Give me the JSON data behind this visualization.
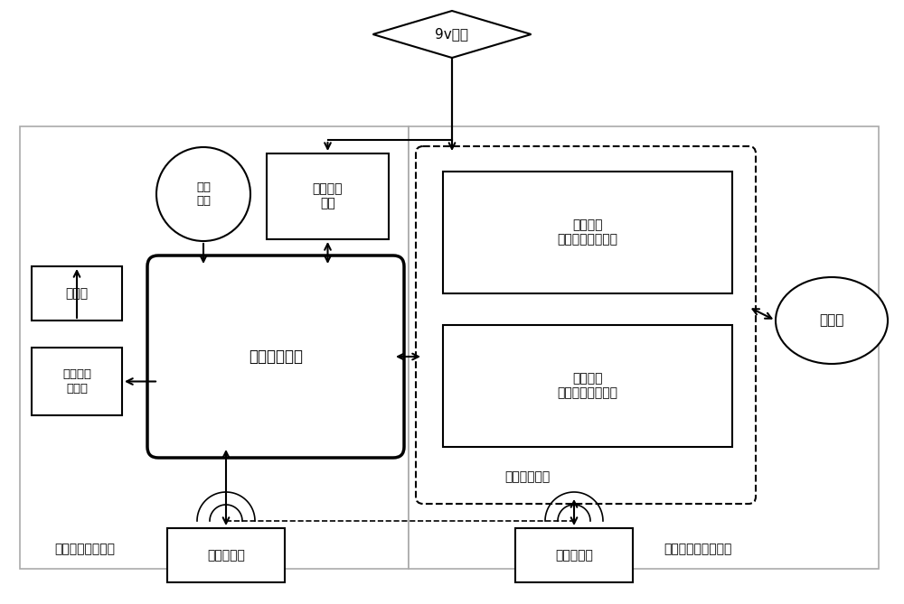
{
  "bg_color": "#ffffff",
  "lc": "#000000",
  "gray": "#aaaaaa",
  "figsize": [
    10.0,
    6.69
  ],
  "dpi": 100,
  "battery_label": "9v电池",
  "control_mcu_label": "控制用单片机",
  "matrix_kbd_label": "矩阵\n键盘",
  "lcd_label": "液晶显示\n模块",
  "laser_label": "激光枪",
  "servo_label": "伺服电机\n控制台",
  "wireless1_label": "无线模块一",
  "wireless2_label": "无线模块二",
  "identify_mcu_label": "识别用单片机",
  "direction_circuit_label": "弹着点的\n方位自动识别电路",
  "ring_circuit_label": "弹着点的\n环数自动识别电路",
  "camera_label": "摄像头",
  "left_system_label": "自动射击控制系统",
  "right_system_label": "弹着点自动识别系统"
}
